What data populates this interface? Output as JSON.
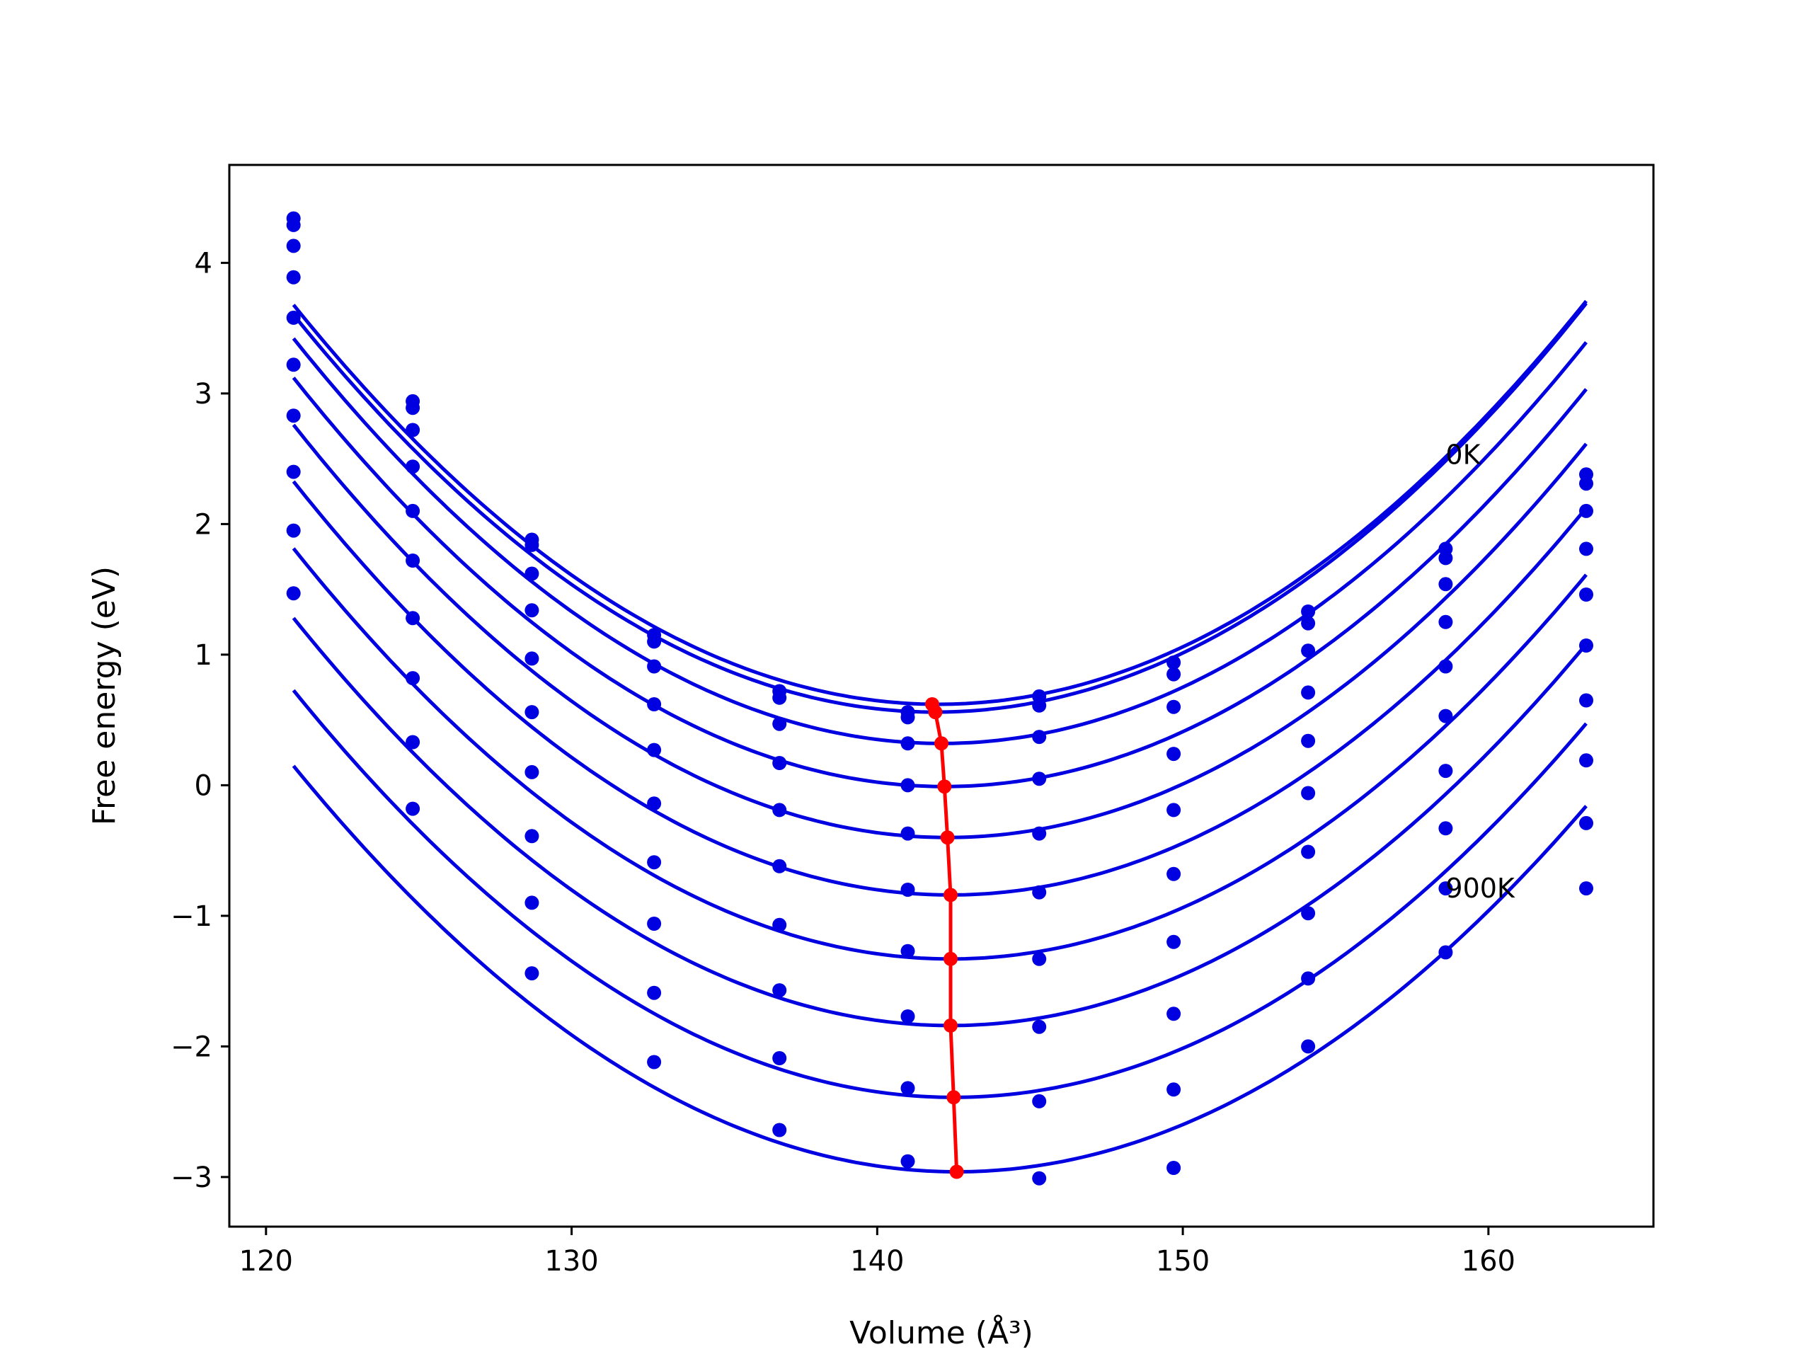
{
  "chart_data": {
    "type": "scatter",
    "xlabel": "Volume (Å³)",
    "ylabel": "Free energy (eV)",
    "xlim": [
      118.8,
      165.4
    ],
    "ylim": [
      -3.38,
      4.75
    ],
    "xticks": [
      120,
      130,
      140,
      150,
      160
    ],
    "yticks": [
      -3,
      -2,
      -1,
      0,
      1,
      2,
      3,
      4
    ],
    "ytick_labels": [
      "−3",
      "−2",
      "−1",
      "0",
      "1",
      "2",
      "3",
      "4"
    ],
    "grid": false,
    "annotations": [
      {
        "text": "0K",
        "x": 158.6,
        "y": 2.46
      },
      {
        "text": "900K",
        "x": 158.6,
        "y": -0.86
      }
    ],
    "volumes": [
      120.9,
      124.8,
      128.7,
      132.7,
      136.8,
      141.0,
      145.3,
      149.7,
      154.1,
      158.6,
      163.2
    ],
    "series": [
      {
        "points": [
          4.34,
          2.94,
          1.88,
          1.15,
          0.72,
          0.56,
          0.68,
          0.94,
          1.33,
          1.81,
          2.38
        ],
        "fit": {
          "a": 0.00687,
          "v0": 142.0,
          "e0": 0.62
        }
      },
      {
        "points": [
          4.29,
          2.89,
          1.84,
          1.1,
          0.67,
          0.52,
          0.61,
          0.85,
          1.24,
          1.74,
          2.31
        ],
        "fit": {
          "a": 0.0069,
          "v0": 141.9,
          "e0": 0.56
        }
      },
      {
        "points": [
          4.13,
          2.72,
          1.62,
          0.91,
          0.47,
          0.32,
          0.37,
          0.6,
          1.03,
          1.54,
          2.1
        ],
        "fit": {
          "a": 0.0069,
          "v0": 142.1,
          "e0": 0.32
        }
      },
      {
        "points": [
          3.89,
          2.44,
          1.34,
          0.62,
          0.17,
          0.0,
          0.05,
          0.24,
          0.71,
          1.25,
          1.81
        ],
        "fit": {
          "a": 0.0069,
          "v0": 142.2,
          "e0": -0.01
        }
      },
      {
        "points": [
          3.58,
          2.1,
          0.97,
          0.27,
          -0.19,
          -0.37,
          -0.37,
          -0.19,
          0.34,
          0.91,
          1.46
        ],
        "fit": {
          "a": 0.0069,
          "v0": 142.3,
          "e0": -0.4
        }
      },
      {
        "points": [
          3.22,
          1.72,
          0.56,
          -0.14,
          -0.62,
          -0.8,
          -0.82,
          -0.68,
          -0.06,
          0.53,
          1.07
        ],
        "fit": {
          "a": 0.00685,
          "v0": 142.4,
          "e0": -0.84
        }
      },
      {
        "points": [
          2.83,
          1.28,
          0.1,
          -0.59,
          -1.07,
          -1.27,
          -1.33,
          -1.2,
          -0.51,
          0.11,
          0.65
        ],
        "fit": {
          "a": 0.0068,
          "v0": 142.4,
          "e0": -1.33
        }
      },
      {
        "points": [
          2.4,
          0.82,
          -0.39,
          -1.06,
          -1.57,
          -1.77,
          -1.85,
          -1.75,
          -0.98,
          -0.33,
          0.19
        ],
        "fit": {
          "a": 0.00675,
          "v0": 142.4,
          "e0": -1.84
        }
      },
      {
        "points": [
          1.95,
          0.33,
          -0.9,
          -1.59,
          -2.09,
          -2.32,
          -2.42,
          -2.33,
          -1.48,
          -0.79,
          -0.29
        ],
        "fit": {
          "a": 0.00668,
          "v0": 142.5,
          "e0": -2.39
        }
      },
      {
        "points": [
          1.47,
          -0.18,
          -1.44,
          -2.12,
          -2.64,
          -2.88,
          -3.01,
          -2.93,
          -2.0,
          -1.28,
          -0.79
        ],
        "fit": {
          "a": 0.0066,
          "v0": 142.6,
          "e0": -2.96
        }
      }
    ],
    "equilibrium_line": {
      "color": "#ff0000",
      "x": [
        141.8,
        141.9,
        142.1,
        142.2,
        142.3,
        142.4,
        142.4,
        142.4,
        142.5,
        142.6
      ],
      "y": [
        0.62,
        0.56,
        0.32,
        -0.01,
        -0.4,
        -0.84,
        -1.33,
        -1.84,
        -2.39,
        -2.96
      ]
    },
    "colors": {
      "curves": "#0000e0",
      "points": "#0000e0",
      "equilibrium": "#ff0000"
    }
  }
}
